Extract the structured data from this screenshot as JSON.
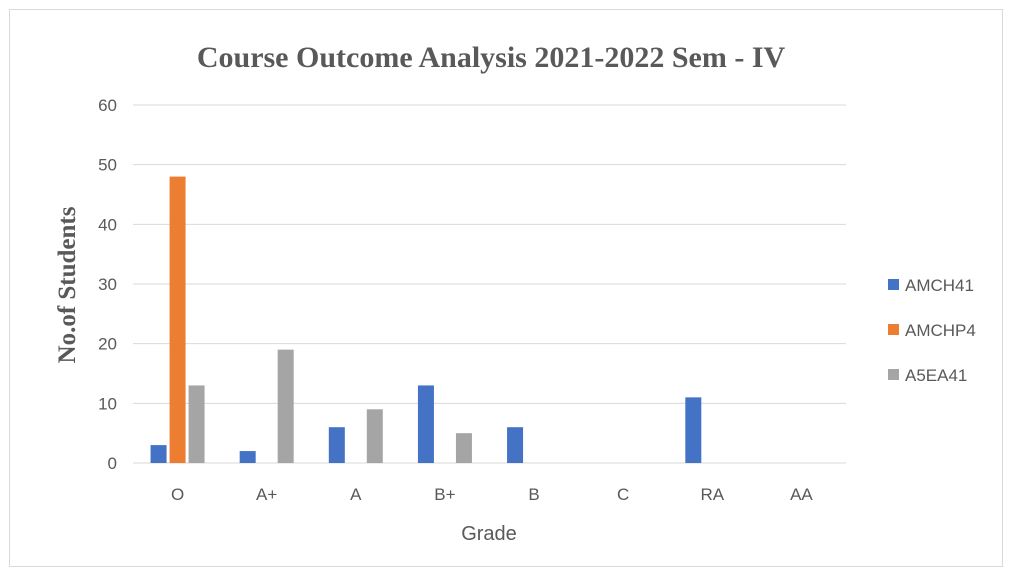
{
  "chart_data": {
    "type": "bar",
    "title": "Course Outcome Analysis 2021-2022 Sem - IV",
    "xlabel": "Grade",
    "ylabel": "No.of Students",
    "ylim": [
      0,
      60
    ],
    "yticks": [
      0,
      10,
      20,
      30,
      40,
      50,
      60
    ],
    "grid": true,
    "legend_position": "right",
    "categories": [
      "O",
      "A+",
      "A",
      "B+",
      "B",
      "C",
      "RA",
      "AA"
    ],
    "series": [
      {
        "name": "AMCH41",
        "color": "#4472c4",
        "values": [
          3,
          2,
          6,
          13,
          6,
          0,
          11,
          0
        ]
      },
      {
        "name": "AMCHP4",
        "color": "#ed7d31",
        "values": [
          48,
          0,
          0,
          0,
          0,
          0,
          0,
          0
        ]
      },
      {
        "name": "A5EA41",
        "color": "#a5a5a5",
        "values": [
          13,
          19,
          9,
          5,
          0,
          0,
          0,
          0
        ]
      }
    ]
  }
}
